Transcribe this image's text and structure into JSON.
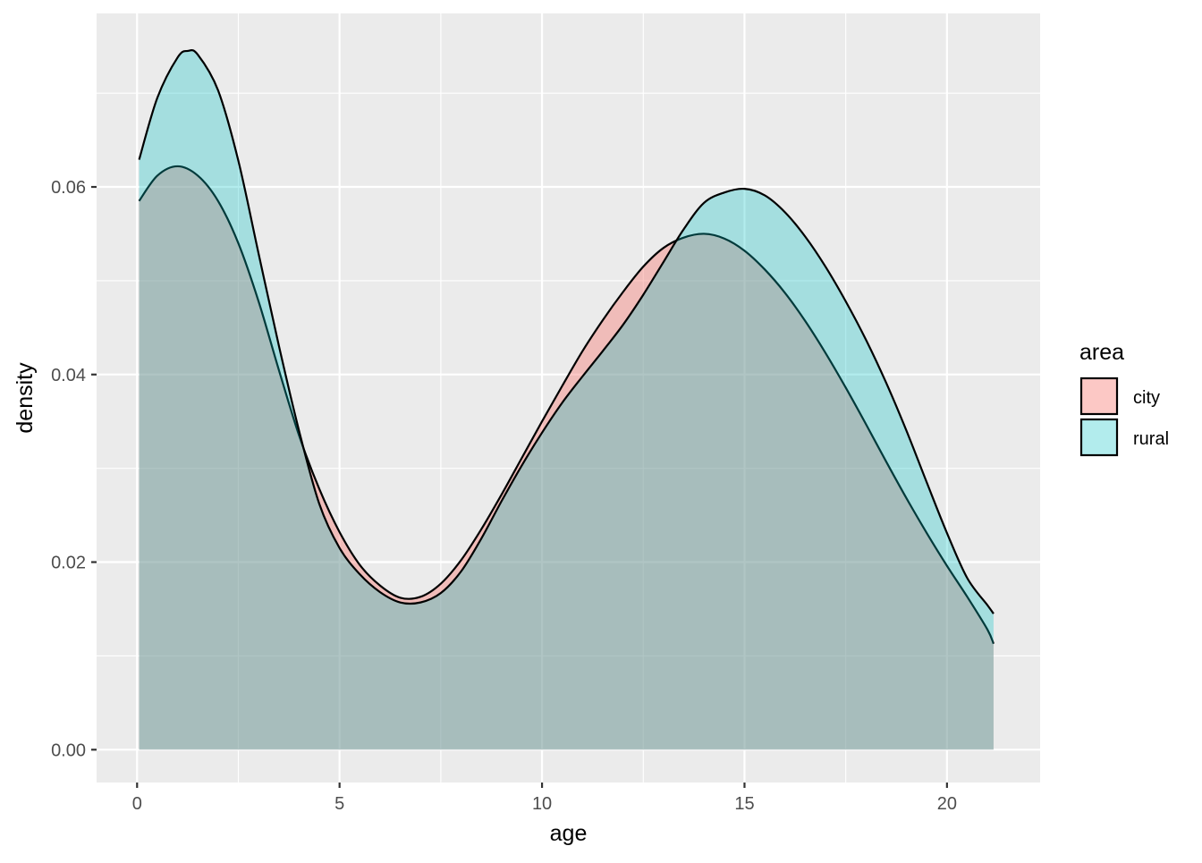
{
  "chart_data": {
    "type": "area",
    "subtype": "density",
    "title": "",
    "xlabel": "age",
    "ylabel": "density",
    "xlim": [
      -1,
      22.3
    ],
    "ylim": [
      -0.0035,
      0.0785
    ],
    "x_ticks": [
      0,
      5,
      10,
      15,
      20
    ],
    "x_tick_labels": [
      "0",
      "5",
      "10",
      "15",
      "20"
    ],
    "y_ticks": [
      0.0,
      0.02,
      0.04,
      0.06
    ],
    "y_tick_labels": [
      "0.00",
      "0.02",
      "0.04",
      "0.06"
    ],
    "grid": true,
    "legend": {
      "title": "area",
      "position": "right"
    },
    "series": [
      {
        "name": "city",
        "fill": "#F8766D",
        "fill_opacity": 0.4,
        "points": [
          [
            0.05,
            0.0585
          ],
          [
            0.5,
            0.0612
          ],
          [
            1.0,
            0.0622
          ],
          [
            1.5,
            0.0612
          ],
          [
            2.0,
            0.0585
          ],
          [
            2.5,
            0.054
          ],
          [
            3.0,
            0.0478
          ],
          [
            3.5,
            0.0405
          ],
          [
            4.0,
            0.0335
          ],
          [
            4.5,
            0.0278
          ],
          [
            5.0,
            0.0232
          ],
          [
            5.5,
            0.0197
          ],
          [
            6.0,
            0.0175
          ],
          [
            6.5,
            0.0162
          ],
          [
            7.0,
            0.0163
          ],
          [
            7.5,
            0.0177
          ],
          [
            8.0,
            0.0202
          ],
          [
            8.5,
            0.0235
          ],
          [
            9.0,
            0.0272
          ],
          [
            9.5,
            0.0311
          ],
          [
            10.0,
            0.035
          ],
          [
            10.5,
            0.0388
          ],
          [
            11.0,
            0.0425
          ],
          [
            11.5,
            0.0458
          ],
          [
            12.0,
            0.0488
          ],
          [
            12.5,
            0.0515
          ],
          [
            13.0,
            0.0535
          ],
          [
            13.5,
            0.0546
          ],
          [
            14.0,
            0.055
          ],
          [
            14.5,
            0.0545
          ],
          [
            15.0,
            0.0532
          ],
          [
            15.5,
            0.0512
          ],
          [
            16.0,
            0.0487
          ],
          [
            16.5,
            0.0457
          ],
          [
            17.0,
            0.0423
          ],
          [
            17.5,
            0.0386
          ],
          [
            18.0,
            0.0347
          ],
          [
            18.5,
            0.0307
          ],
          [
            19.0,
            0.0268
          ],
          [
            19.5,
            0.0231
          ],
          [
            20.0,
            0.0196
          ],
          [
            20.5,
            0.0163
          ],
          [
            21.0,
            0.0128
          ],
          [
            21.15,
            0.0113
          ]
        ]
      },
      {
        "name": "rural",
        "fill": "#00BFC4",
        "fill_opacity": 0.3,
        "points": [
          [
            0.05,
            0.0629
          ],
          [
            0.5,
            0.0695
          ],
          [
            1.0,
            0.0738
          ],
          [
            1.25,
            0.0745
          ],
          [
            1.5,
            0.0741
          ],
          [
            2.0,
            0.0703
          ],
          [
            2.5,
            0.0628
          ],
          [
            3.0,
            0.0529
          ],
          [
            3.5,
            0.0431
          ],
          [
            4.0,
            0.034
          ],
          [
            4.5,
            0.0262
          ],
          [
            5.0,
            0.0215
          ],
          [
            5.5,
            0.0187
          ],
          [
            6.0,
            0.0168
          ],
          [
            6.5,
            0.0157
          ],
          [
            7.0,
            0.0157
          ],
          [
            7.5,
            0.0167
          ],
          [
            8.0,
            0.019
          ],
          [
            8.5,
            0.0225
          ],
          [
            9.0,
            0.0265
          ],
          [
            9.5,
            0.0303
          ],
          [
            10.0,
            0.0338
          ],
          [
            10.5,
            0.037
          ],
          [
            11.0,
            0.0398
          ],
          [
            11.5,
            0.0425
          ],
          [
            12.0,
            0.0453
          ],
          [
            12.5,
            0.0485
          ],
          [
            13.0,
            0.052
          ],
          [
            13.5,
            0.0555
          ],
          [
            14.0,
            0.0583
          ],
          [
            14.5,
            0.0594
          ],
          [
            15.0,
            0.0598
          ],
          [
            15.5,
            0.0591
          ],
          [
            16.0,
            0.0573
          ],
          [
            16.5,
            0.0547
          ],
          [
            17.0,
            0.0515
          ],
          [
            17.5,
            0.0478
          ],
          [
            18.0,
            0.0437
          ],
          [
            18.5,
            0.0391
          ],
          [
            19.0,
            0.034
          ],
          [
            19.5,
            0.0285
          ],
          [
            20.0,
            0.0231
          ],
          [
            20.5,
            0.0183
          ],
          [
            21.0,
            0.0154
          ],
          [
            21.15,
            0.0145
          ]
        ]
      }
    ]
  }
}
